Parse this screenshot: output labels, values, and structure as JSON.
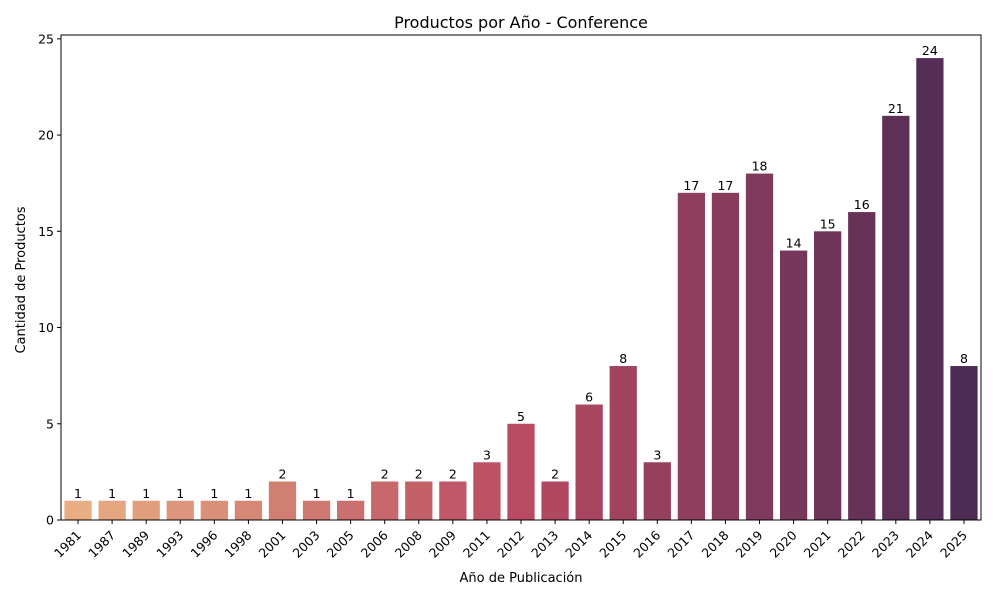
{
  "chart_data": {
    "type": "bar",
    "title": "Productos por Año - Conference",
    "xlabel": "Año de Publicación",
    "ylabel": "Cantidad de Productos",
    "categories": [
      "1981",
      "1987",
      "1989",
      "1993",
      "1996",
      "1998",
      "2001",
      "2003",
      "2005",
      "2006",
      "2008",
      "2009",
      "2011",
      "2012",
      "2013",
      "2014",
      "2015",
      "2016",
      "2017",
      "2018",
      "2019",
      "2020",
      "2021",
      "2022",
      "2023",
      "2024",
      "2025"
    ],
    "values": [
      1,
      1,
      1,
      1,
      1,
      1,
      2,
      1,
      1,
      2,
      2,
      2,
      3,
      5,
      2,
      6,
      8,
      3,
      17,
      17,
      18,
      14,
      15,
      16,
      21,
      24,
      8
    ],
    "ylim": [
      0,
      25.2
    ],
    "yticks": [
      0,
      5,
      10,
      15,
      20,
      25
    ],
    "grid": false,
    "palette_start": "#e8ad82",
    "palette_mid": "#b84a62",
    "palette_end": "#4d2b55"
  }
}
